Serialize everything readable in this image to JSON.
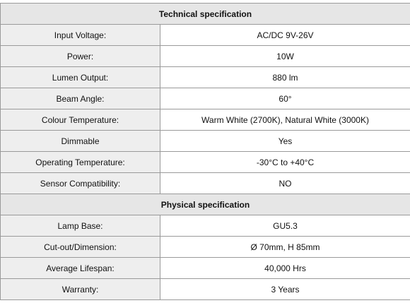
{
  "sections": [
    {
      "title": "Technical specification",
      "rows": [
        {
          "label": "Input Voltage:",
          "value": "AC/DC 9V-26V"
        },
        {
          "label": "Power:",
          "value": "10W"
        },
        {
          "label": "Lumen Output:",
          "value": "880 lm"
        },
        {
          "label": "Beam Angle:",
          "value": "60°"
        },
        {
          "label": "Colour Temperature:",
          "value": "Warm White (2700K), Natural White (3000K)"
        },
        {
          "label": "Dimmable",
          "value": "Yes"
        },
        {
          "label": "Operating Temperature:",
          "value": "-30°C to +40°C"
        },
        {
          "label": "Sensor Compatibility:",
          "value": "NO"
        }
      ]
    },
    {
      "title": "Physical specification",
      "rows": [
        {
          "label": "Lamp Base:",
          "value": "GU5.3"
        },
        {
          "label": "Cut-out/Dimension:",
          "value": "Ø 70mm, H 85mm"
        },
        {
          "label": "Average Lifespan:",
          "value": "40,000 Hrs"
        },
        {
          "label": "Warranty:",
          "value": "3 Years"
        }
      ]
    }
  ]
}
